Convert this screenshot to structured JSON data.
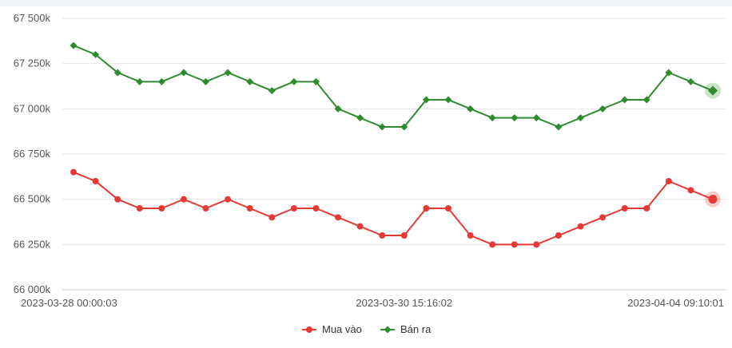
{
  "chart_data": {
    "type": "line",
    "title": "",
    "xlabel": "",
    "ylabel": "",
    "ylim": [
      66000000,
      67500000
    ],
    "grid": true,
    "legend_position": "bottom",
    "y_ticks": [
      {
        "value": 66000000,
        "label": "66 000k"
      },
      {
        "value": 66250000,
        "label": "66 250k"
      },
      {
        "value": 66500000,
        "label": "66 500k"
      },
      {
        "value": 66750000,
        "label": "66 750k"
      },
      {
        "value": 67000000,
        "label": "67 000k"
      },
      {
        "value": 67250000,
        "label": "67 250k"
      },
      {
        "value": 67500000,
        "label": "67 500k"
      }
    ],
    "x_tick_labels": [
      {
        "index": 0,
        "label": "2023-03-28 00:00:03"
      },
      {
        "index": 15,
        "label": "2023-03-30 15:16:02"
      },
      {
        "index": 29,
        "label": "2023-04-04 09:10:01"
      }
    ],
    "series": [
      {
        "name": "Mua vào",
        "color": "#e53935",
        "marker": "circle",
        "values": [
          66650000,
          66600000,
          66500000,
          66450000,
          66450000,
          66500000,
          66450000,
          66500000,
          66450000,
          66400000,
          66450000,
          66450000,
          66400000,
          66350000,
          66300000,
          66300000,
          66450000,
          66450000,
          66300000,
          66250000,
          66250000,
          66250000,
          66300000,
          66350000,
          66400000,
          66450000,
          66450000,
          66600000,
          66550000,
          66500000
        ]
      },
      {
        "name": "Bán ra",
        "color": "#2e8b2e",
        "marker": "diamond",
        "values": [
          67350000,
          67300000,
          67200000,
          67150000,
          67150000,
          67200000,
          67150000,
          67200000,
          67150000,
          67100000,
          67150000,
          67150000,
          67000000,
          66950000,
          66900000,
          66900000,
          67050000,
          67050000,
          67000000,
          66950000,
          66950000,
          66950000,
          66900000,
          66950000,
          67000000,
          67050000,
          67050000,
          67200000,
          67150000,
          67100000
        ]
      }
    ]
  }
}
